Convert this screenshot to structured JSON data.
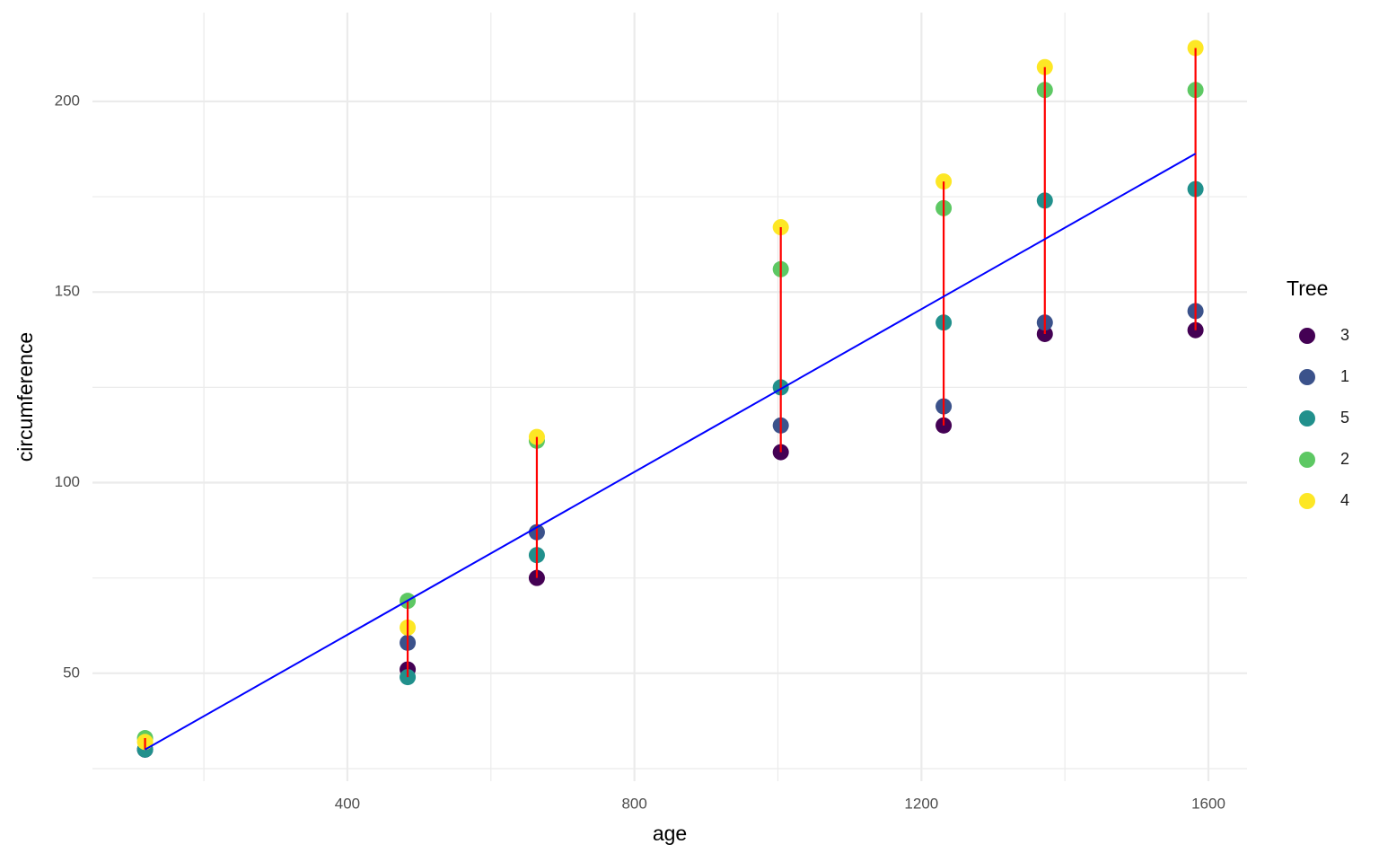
{
  "chart_data": {
    "type": "scatter",
    "x_label": "age",
    "y_label": "circumference",
    "legend_title": "Tree",
    "x": [
      118,
      484,
      664,
      1004,
      1231,
      1372,
      1582
    ],
    "series": [
      {
        "name": "3",
        "color": "#440154",
        "values": [
          30,
          51,
          75,
          108,
          115,
          139,
          140
        ]
      },
      {
        "name": "1",
        "color": "#3b528b",
        "values": [
          30,
          58,
          87,
          115,
          120,
          142,
          145
        ]
      },
      {
        "name": "5",
        "color": "#21908c",
        "values": [
          30,
          49,
          81,
          125,
          142,
          174,
          177
        ]
      },
      {
        "name": "2",
        "color": "#5dc863",
        "values": [
          33,
          69,
          111,
          156,
          172,
          203,
          203
        ]
      },
      {
        "name": "4",
        "color": "#fde725",
        "values": [
          32,
          62,
          112,
          167,
          179,
          209,
          214
        ]
      }
    ],
    "range_color": "#ff0000",
    "fit": {
      "color": "#0000ff",
      "x": [
        118,
        1582
      ],
      "y": [
        30.0,
        186.3
      ]
    },
    "xlim": [
      44.7,
      1653.8
    ],
    "ylim": [
      21.7,
      223.3
    ],
    "xticks": [
      400,
      800,
      1200,
      1600
    ],
    "yticks": [
      50,
      100,
      150,
      200
    ],
    "x_minor_grid": [
      200,
      600,
      1000,
      1400
    ],
    "y_minor_grid": [
      25,
      75,
      125,
      175
    ],
    "grid": true,
    "legend": "right"
  }
}
